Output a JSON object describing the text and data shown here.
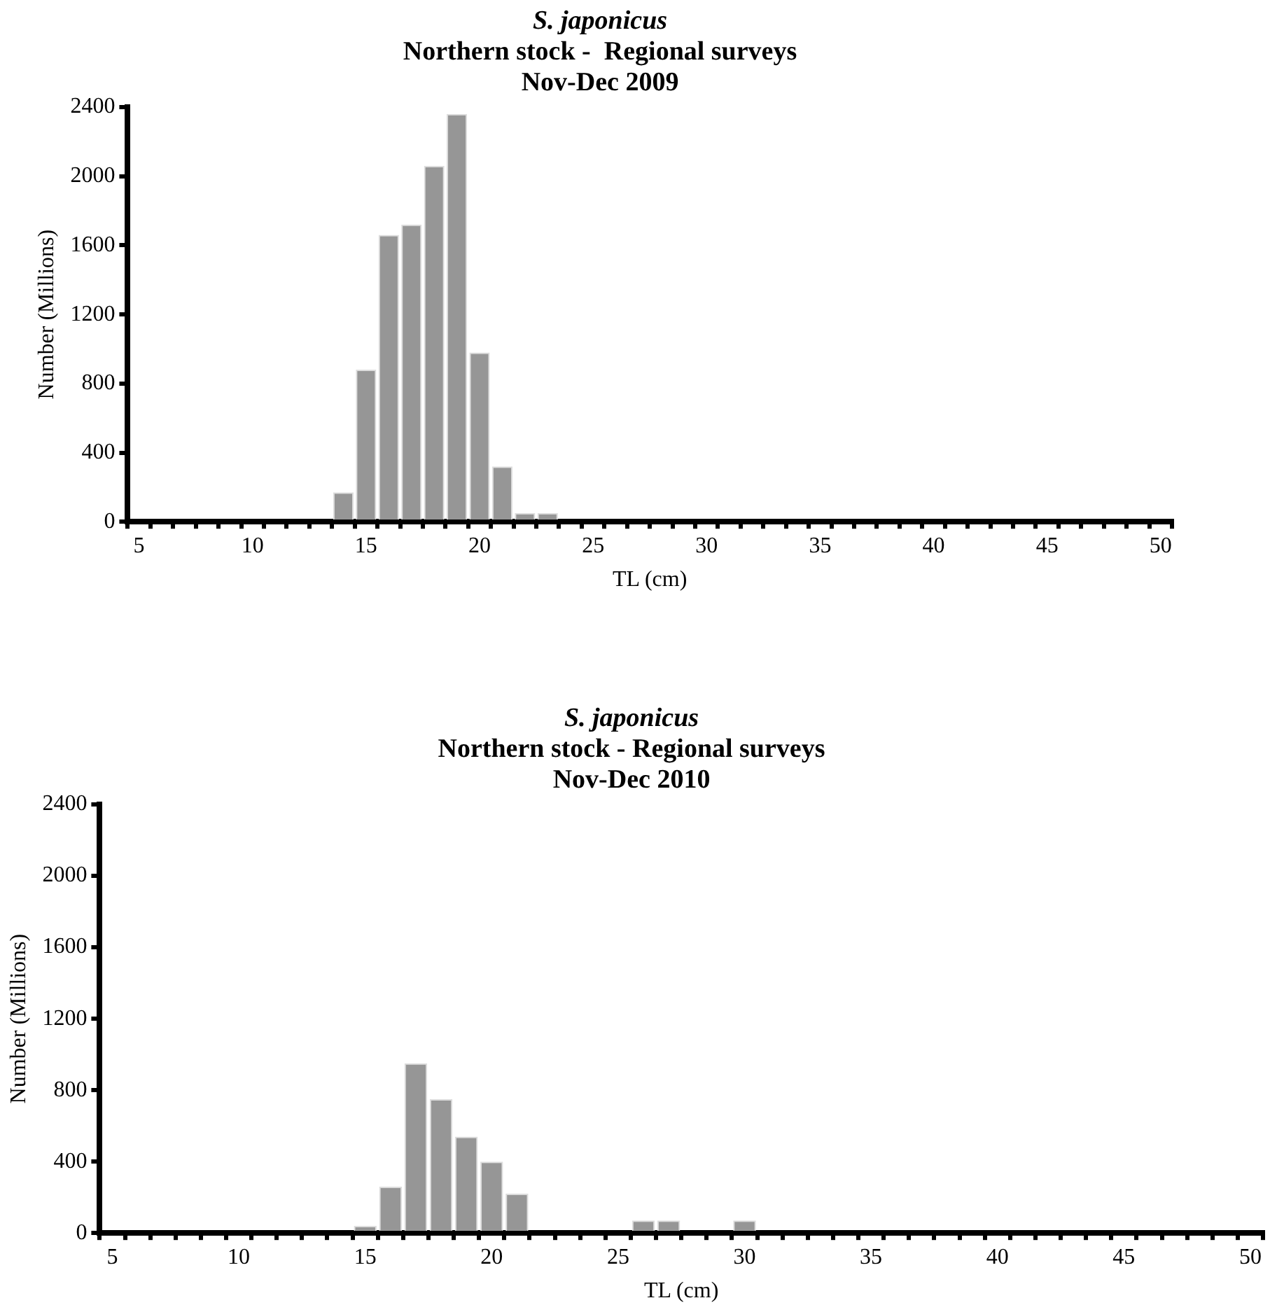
{
  "chart_data": [
    {
      "type": "bar",
      "title": "S. japonicus",
      "subtitle": "Northern stock -  Regional surveys\nNov-Dec 2009",
      "xlabel": "TL (cm)",
      "ylabel": "Number (Millions)",
      "categories": [
        "5",
        null,
        null,
        null,
        null,
        "10",
        null,
        null,
        null,
        null,
        "15",
        null,
        null,
        null,
        null,
        "20",
        null,
        null,
        null,
        null,
        "25",
        null,
        null,
        null,
        null,
        "30",
        null,
        null,
        null,
        null,
        "35",
        null,
        null,
        null,
        null,
        "40",
        null,
        null,
        null,
        null,
        "45",
        null,
        null,
        null,
        null,
        "50"
      ],
      "values": [
        0,
        0,
        0,
        0,
        0,
        0,
        0,
        0,
        0,
        170,
        880,
        1660,
        1720,
        2060,
        2360,
        980,
        320,
        50,
        50,
        null,
        0,
        0,
        0,
        0,
        0,
        0,
        0,
        0,
        0,
        0,
        0,
        0,
        0,
        0,
        0,
        0,
        0,
        0,
        0,
        0,
        0,
        0,
        0,
        0,
        0,
        0
      ],
      "color": "#969696",
      "ylim": [
        0,
        2400
      ],
      "yticks": [
        0,
        400,
        800,
        1200,
        1600,
        2000,
        2400
      ],
      "grid": false,
      "legend": false
    },
    {
      "type": "bar",
      "title": "S. japonicus",
      "subtitle": "Northern stock - Regional surveys\nNov-Dec 2010",
      "xlabel": "TL (cm)",
      "ylabel": "Number (Millions)",
      "categories": [
        "5",
        null,
        null,
        null,
        null,
        "10",
        null,
        null,
        null,
        null,
        "15",
        null,
        null,
        null,
        null,
        "20",
        null,
        null,
        null,
        null,
        "25",
        null,
        null,
        null,
        null,
        "30",
        null,
        null,
        null,
        null,
        "35",
        null,
        null,
        null,
        null,
        "40",
        null,
        null,
        null,
        null,
        "45",
        null,
        null,
        null,
        null,
        "50"
      ],
      "values": [
        0,
        0,
        0,
        0,
        0,
        0,
        0,
        0,
        0,
        0,
        40,
        260,
        950,
        750,
        540,
        400,
        220,
        null,
        0,
        0,
        0,
        70,
        70,
        0,
        0,
        70,
        0,
        0,
        0,
        0,
        0,
        0,
        0,
        0,
        0,
        0,
        0,
        0,
        0,
        0,
        0,
        0,
        0,
        0,
        0,
        0
      ],
      "color": "#969696",
      "ylim": [
        0,
        2400
      ],
      "yticks": [
        0,
        400,
        800,
        1200,
        1600,
        2000,
        2400
      ],
      "grid": false,
      "legend": false
    }
  ]
}
